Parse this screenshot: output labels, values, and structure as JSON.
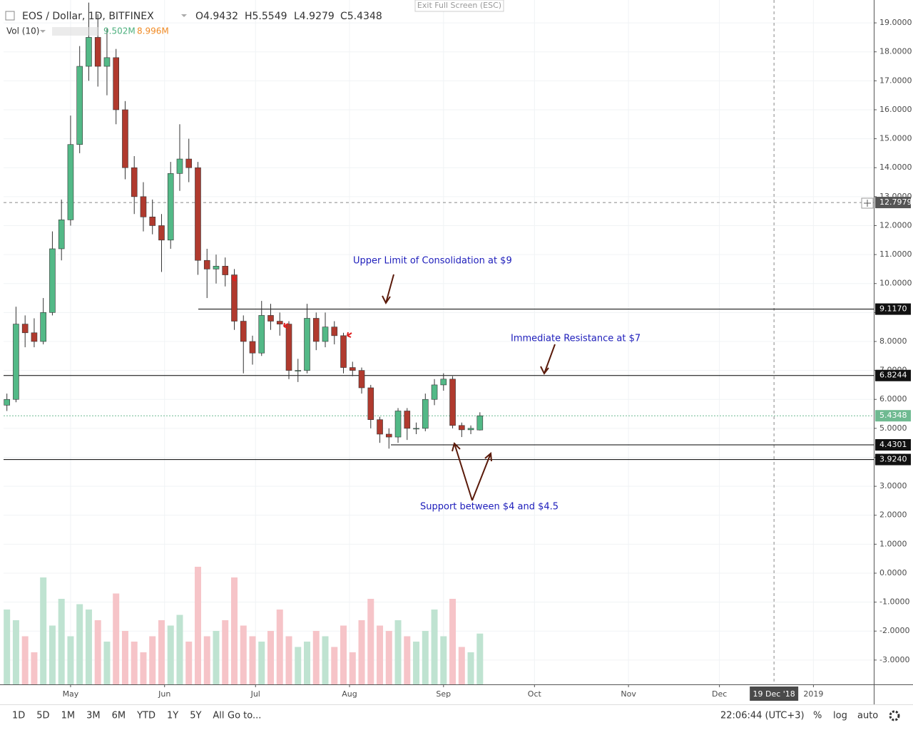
{
  "chart_data": {
    "type": "candlestick",
    "symbol": "EOS / Dollar, 1D, BITFINEX",
    "ohlc_labels": [
      "O4.9432",
      "H5.5549",
      "L4.9279",
      "C5.4348"
    ],
    "volume_label": "Vol (10)",
    "volume_value_labels": [
      "9.502M",
      "8.996M"
    ],
    "x": [
      9,
      12,
      15,
      18,
      21,
      24,
      27,
      30,
      33,
      36,
      39,
      42,
      45,
      48,
      51,
      54,
      57,
      60,
      63,
      66,
      69,
      72,
      75,
      78,
      81,
      84,
      87,
      90,
      93,
      96,
      99,
      102,
      105,
      108,
      111,
      114,
      117,
      120,
      123,
      126,
      129,
      132,
      135,
      138,
      141,
      144,
      147,
      150,
      153,
      156,
      159,
      162,
      165
    ],
    "open": [
      5.8,
      6.0,
      8.6,
      8.3,
      8.0,
      9.0,
      11.2,
      12.2,
      14.8,
      17.5,
      18.5,
      17.5,
      17.8,
      16.0,
      14.0,
      13.0,
      12.3,
      12.0,
      11.5,
      13.8,
      14.3,
      14.0,
      10.8,
      10.5,
      10.6,
      10.3,
      8.7,
      8.0,
      7.6,
      8.9,
      8.7,
      8.6,
      7.0,
      7.0,
      8.8,
      8.0,
      8.5,
      8.2,
      7.1,
      7.0,
      6.4,
      5.3,
      4.8,
      4.7,
      5.6,
      5.0,
      5.0,
      6.0,
      6.5,
      6.7,
      5.1,
      4.95,
      4.9432
    ],
    "high": [
      6.2,
      9.2,
      8.9,
      8.8,
      9.5,
      11.8,
      12.9,
      15.8,
      18.2,
      19.7,
      19.3,
      18.8,
      18.1,
      16.3,
      14.4,
      13.5,
      12.9,
      12.4,
      14.2,
      15.5,
      15.0,
      14.2,
      11.2,
      11.0,
      10.9,
      10.5,
      8.9,
      8.2,
      9.4,
      9.3,
      9.0,
      8.7,
      7.4,
      9.3,
      9.0,
      9.0,
      8.7,
      8.3,
      7.3,
      7.1,
      6.5,
      5.4,
      5.0,
      5.7,
      5.7,
      5.2,
      6.2,
      6.7,
      6.9,
      6.8,
      5.2,
      5.1,
      5.5549
    ],
    "low": [
      5.6,
      5.9,
      7.8,
      7.8,
      7.9,
      8.9,
      10.8,
      12.0,
      14.5,
      17.0,
      16.8,
      16.5,
      15.5,
      13.6,
      12.4,
      11.8,
      11.7,
      10.4,
      11.2,
      13.2,
      13.5,
      10.3,
      9.5,
      10.0,
      9.9,
      8.4,
      6.9,
      7.2,
      7.5,
      8.4,
      8.2,
      6.7,
      6.6,
      6.9,
      7.7,
      7.8,
      7.9,
      6.9,
      6.8,
      6.2,
      5.0,
      4.5,
      4.3,
      4.5,
      4.6,
      4.8,
      4.9,
      5.8,
      6.3,
      5.0,
      4.7,
      4.8,
      4.9279
    ],
    "close": [
      6.0,
      8.6,
      8.3,
      8.0,
      9.0,
      11.2,
      12.2,
      14.8,
      17.5,
      18.5,
      17.5,
      17.8,
      16.0,
      14.0,
      13.0,
      12.3,
      12.0,
      11.5,
      13.8,
      14.3,
      14.0,
      10.8,
      10.5,
      10.6,
      10.3,
      8.7,
      8.0,
      7.6,
      8.9,
      8.7,
      8.6,
      7.0,
      7.0,
      8.8,
      8.0,
      8.5,
      8.2,
      7.1,
      7.0,
      6.4,
      5.3,
      4.8,
      4.7,
      5.6,
      5.0,
      5.0,
      6.0,
      6.5,
      6.7,
      5.1,
      4.95,
      5.0,
      5.4348
    ],
    "volume": [
      14,
      12,
      9,
      6,
      20,
      11,
      16,
      9,
      15,
      14,
      12,
      8,
      17,
      10,
      8,
      6,
      9,
      12,
      11,
      13,
      8,
      22,
      9,
      10,
      12,
      20,
      11,
      9,
      8,
      10,
      14,
      9,
      7,
      8,
      10,
      9,
      7,
      11,
      6,
      12,
      16,
      11,
      10,
      12,
      9,
      8,
      10,
      14,
      9,
      16,
      7,
      6,
      9.502
    ],
    "colors": {
      "up": "#53b987",
      "down": "#b03a2e",
      "volume_up": "#bfe3d1",
      "volume_down": "#f6c4c8"
    },
    "xlim": [
      7.9,
      294.9
    ],
    "xticks": [
      {
        "value": 30,
        "label": "May"
      },
      {
        "value": 61,
        "label": "Jun"
      },
      {
        "value": 91,
        "label": "Jul"
      },
      {
        "value": 122,
        "label": "Aug"
      },
      {
        "value": 153,
        "label": "Sep"
      },
      {
        "value": 183,
        "label": "Oct"
      },
      {
        "value": 214,
        "label": "Nov"
      },
      {
        "value": 244,
        "label": "Dec"
      },
      {
        "value": 275,
        "label": "2019"
      }
    ],
    "ylim": [
      -3.84,
      19.79
    ],
    "yticks": [
      {
        "value": 19,
        "label": "19.0000"
      },
      {
        "value": 18,
        "label": "18.0000"
      },
      {
        "value": 17,
        "label": "17.0000"
      },
      {
        "value": 16,
        "label": "16.0000"
      },
      {
        "value": 15,
        "label": "15.0000"
      },
      {
        "value": 14,
        "label": "14.0000"
      },
      {
        "value": 13,
        "label": "13.0000"
      },
      {
        "value": 12,
        "label": "12.0000"
      },
      {
        "value": 11,
        "label": "11.0000"
      },
      {
        "value": 10,
        "label": "10.0000"
      },
      {
        "value": 9,
        "label": "9.0000"
      },
      {
        "value": 8,
        "label": "8.0000"
      },
      {
        "value": 7,
        "label": "7.0000"
      },
      {
        "value": 6,
        "label": "6.0000"
      },
      {
        "value": 5,
        "label": "5.0000"
      },
      {
        "value": 4,
        "label": "4.0000"
      },
      {
        "value": 3,
        "label": "3.0000"
      },
      {
        "value": 2,
        "label": "2.0000"
      },
      {
        "value": 1,
        "label": "1.0000"
      },
      {
        "value": 0,
        "label": "0.0000"
      },
      {
        "value": -1,
        "label": "-1.0000"
      },
      {
        "value": -2,
        "label": "-2.0000"
      },
      {
        "value": -3,
        "label": "-3.0000"
      }
    ],
    "levels": [
      {
        "value": 12.7979,
        "label": "12.7979",
        "color": "#555555"
      },
      {
        "value": 9.117,
        "label": "9.1170",
        "color": "#111111"
      },
      {
        "value": 6.8244,
        "label": "6.8244",
        "color": "#111111"
      },
      {
        "value": 5.4348,
        "label": "5.4348",
        "color": "#6fba91"
      },
      {
        "value": 4.4301,
        "label": "4.4301",
        "color": "#111111"
      },
      {
        "value": 3.924,
        "label": "3.9240",
        "color": "#111111"
      }
    ],
    "cursor": {
      "value": 262,
      "label": "19 Dec '18"
    },
    "annotations": [
      "Upper Limit of Consolidation at $9",
      "Immediate Resistance at $7",
      "Support between $4 and $4.5"
    ]
  },
  "exit_button": "Exit Full Screen (ESC)",
  "toolbar": {
    "ranges": [
      "1D",
      "5D",
      "1M",
      "3M",
      "6M",
      "YTD",
      "1Y",
      "5Y",
      "All"
    ],
    "goto": "Go to...",
    "clock": "22:06:44 (UTC+3)",
    "percent": "%",
    "log": "log",
    "auto": "auto"
  }
}
